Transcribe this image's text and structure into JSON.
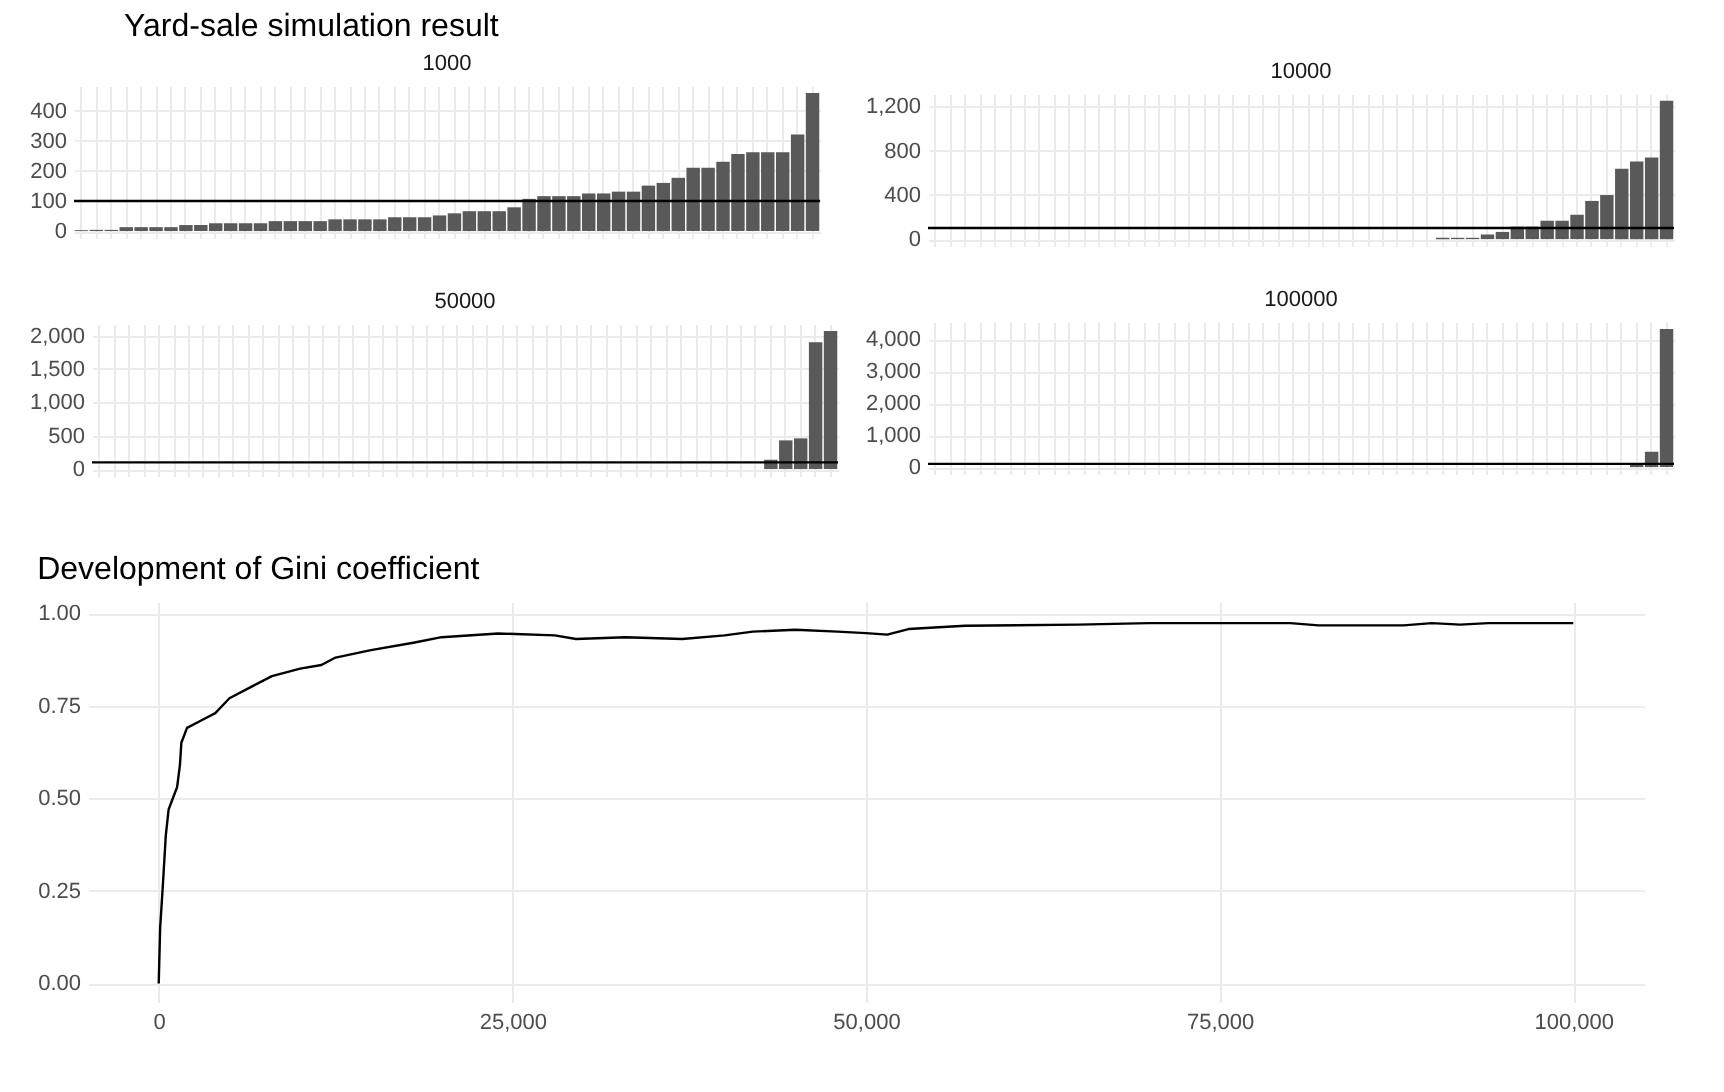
{
  "chart_data": [
    {
      "type": "bar",
      "title": "Yard-sale simulation result",
      "subtitle": "1000",
      "categories": [
        null,
        null,
        null,
        null,
        null,
        null,
        null,
        null,
        null,
        null,
        null,
        null,
        null,
        null,
        null,
        null,
        null,
        null,
        null,
        null,
        null,
        null,
        null,
        null,
        null,
        null,
        null,
        null,
        null,
        null,
        null,
        null,
        null,
        null,
        null,
        null,
        null,
        null,
        null,
        null,
        null,
        null,
        null,
        null,
        null,
        null,
        null,
        null,
        null,
        null
      ],
      "values": [
        3,
        4,
        4,
        13,
        13,
        13,
        13,
        20,
        20,
        26,
        26,
        26,
        26,
        33,
        33,
        33,
        33,
        39,
        39,
        39,
        39,
        46,
        46,
        46,
        52,
        59,
        66,
        66,
        66,
        79,
        107,
        116,
        116,
        116,
        125,
        125,
        131,
        131,
        151,
        160,
        177,
        210,
        210,
        230,
        256,
        262,
        262,
        262,
        321,
        459
      ],
      "color": "#595959",
      "ylim": [
        -23,
        482
      ],
      "yticks": [
        0,
        100,
        200,
        300,
        400
      ],
      "grid": true,
      "tick_labels": "y",
      "ref_lines": [
        {
          "axis": "y",
          "value": 100,
          "color": "#000000"
        }
      ]
    },
    {
      "type": "bar",
      "subtitle": "10000",
      "categories": [
        null,
        null,
        null,
        null,
        null,
        null,
        null,
        null,
        null,
        null,
        null,
        null,
        null,
        null,
        null,
        null,
        null,
        null,
        null,
        null,
        null,
        null,
        null,
        null,
        null,
        null,
        null,
        null,
        null,
        null,
        null,
        null,
        null,
        null,
        null,
        null,
        null,
        null,
        null,
        null,
        null,
        null,
        null,
        null,
        null,
        null,
        null,
        null,
        null,
        null
      ],
      "values": [
        0,
        0,
        0,
        0,
        0,
        0,
        0,
        0,
        0,
        0,
        0,
        0,
        0,
        0,
        0,
        0,
        0,
        0,
        0,
        0,
        0,
        0,
        0,
        0,
        0,
        0,
        0,
        0,
        0,
        0,
        0,
        0,
        0,
        0,
        12,
        12,
        12,
        42,
        65,
        113,
        113,
        166,
        166,
        220,
        345,
        398,
        636,
        701,
        737,
        1248
      ],
      "color": "#595959",
      "ylim": [
        -62,
        1310
      ],
      "yticks": [
        0,
        400,
        800,
        {
          "value": 1200,
          "label": "1,200"
        }
      ],
      "grid": true,
      "tick_labels": "y",
      "ref_lines": [
        {
          "axis": "y",
          "value": 100,
          "color": "#000000"
        }
      ]
    },
    {
      "type": "bar",
      "subtitle": "50000",
      "categories": [
        null,
        null,
        null,
        null,
        null,
        null,
        null,
        null,
        null,
        null,
        null,
        null,
        null,
        null,
        null,
        null,
        null,
        null,
        null,
        null,
        null,
        null,
        null,
        null,
        null,
        null,
        null,
        null,
        null,
        null,
        null,
        null,
        null,
        null,
        null,
        null,
        null,
        null,
        null,
        null,
        null,
        null,
        null,
        null,
        null,
        null,
        null,
        null,
        null,
        null
      ],
      "values": [
        0,
        0,
        0,
        0,
        0,
        0,
        0,
        0,
        0,
        0,
        0,
        0,
        0,
        0,
        0,
        0,
        0,
        0,
        0,
        0,
        0,
        0,
        0,
        0,
        0,
        0,
        0,
        0,
        0,
        0,
        0,
        0,
        0,
        0,
        0,
        0,
        0,
        0,
        0,
        0,
        0,
        0,
        0,
        0,
        0,
        140,
        430,
        460,
        1900,
        2070
      ],
      "color": "#595959",
      "ylim": [
        -104,
        2174
      ],
      "yticks": [
        0,
        500,
        {
          "value": 1000,
          "label": "1,000"
        },
        {
          "value": 1500,
          "label": "1,500"
        },
        {
          "value": 2000,
          "label": "2,000"
        }
      ],
      "grid": true,
      "tick_labels": "y",
      "ref_lines": [
        {
          "axis": "y",
          "value": 100,
          "color": "#000000"
        }
      ]
    },
    {
      "type": "bar",
      "subtitle": "100000",
      "categories": [
        null,
        null,
        null,
        null,
        null,
        null,
        null,
        null,
        null,
        null,
        null,
        null,
        null,
        null,
        null,
        null,
        null,
        null,
        null,
        null,
        null,
        null,
        null,
        null,
        null,
        null,
        null,
        null,
        null,
        null,
        null,
        null,
        null,
        null,
        null,
        null,
        null,
        null,
        null,
        null,
        null,
        null,
        null,
        null,
        null,
        null,
        null,
        null,
        null,
        null
      ],
      "values": [
        0,
        0,
        0,
        0,
        0,
        0,
        0,
        0,
        0,
        0,
        0,
        0,
        0,
        0,
        0,
        0,
        0,
        0,
        0,
        0,
        0,
        0,
        0,
        0,
        0,
        0,
        0,
        0,
        0,
        0,
        0,
        0,
        0,
        0,
        0,
        0,
        0,
        0,
        0,
        0,
        0,
        0,
        0,
        0,
        0,
        0,
        0,
        90,
        480,
        4320
      ],
      "color": "#595959",
      "ylim": [
        -216,
        4536
      ],
      "yticks": [
        0,
        {
          "value": 1000,
          "label": "1,000"
        },
        {
          "value": 2000,
          "label": "2,000"
        },
        {
          "value": 3000,
          "label": "3,000"
        },
        {
          "value": 4000,
          "label": "4,000"
        }
      ],
      "grid": true,
      "tick_labels": "y",
      "ref_lines": [
        {
          "axis": "y",
          "value": 100,
          "color": "#000000"
        }
      ]
    },
    {
      "type": "line",
      "title": "Development of Gini coefficient",
      "x": [
        0,
        100,
        300,
        500,
        700,
        1000,
        1300,
        1500,
        1600,
        2000,
        3000,
        4000,
        5000,
        6500,
        8000,
        10000,
        11500,
        12500,
        15000,
        18000,
        20000,
        24000,
        28000,
        29500,
        33000,
        37000,
        40000,
        42000,
        45000,
        48000,
        50000,
        51500,
        53000,
        57000,
        65000,
        70000,
        80000,
        82000,
        88000,
        90000,
        92000,
        94000,
        100000
      ],
      "values": [
        0,
        0.15,
        0.27,
        0.4,
        0.47,
        0.5,
        0.53,
        0.59,
        0.65,
        0.69,
        0.71,
        0.73,
        0.77,
        0.8,
        0.83,
        0.85,
        0.86,
        0.88,
        0.9,
        0.92,
        0.935,
        0.945,
        0.94,
        0.93,
        0.935,
        0.93,
        0.94,
        0.95,
        0.955,
        0.95,
        0.946,
        0.942,
        0.957,
        0.966,
        0.969,
        0.973,
        0.973,
        0.967,
        0.967,
        0.973,
        0.969,
        0.973,
        0.973
      ],
      "color": "#000000",
      "xlim": [
        -5000,
        105000
      ],
      "xticks": [
        0,
        {
          "value": 25000,
          "label": "25,000"
        },
        {
          "value": 50000,
          "label": "50,000"
        },
        {
          "value": 75000,
          "label": "75,000"
        },
        {
          "value": 100000,
          "label": "100,000"
        }
      ],
      "ylim": [
        -0.05,
        1.03
      ],
      "yticks": [
        {
          "value": 0,
          "label": "0.00"
        },
        0.25,
        {
          "value": 0.5,
          "label": "0.50"
        },
        0.75,
        {
          "value": 1,
          "label": "1.00"
        }
      ],
      "grid": true
    }
  ]
}
